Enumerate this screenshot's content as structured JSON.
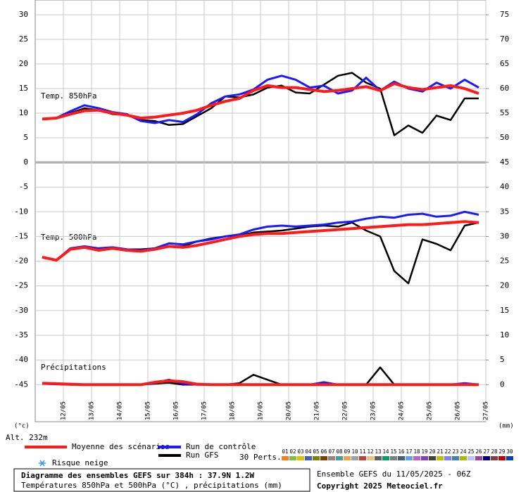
{
  "chart_data": [
    {
      "type": "line",
      "label": "Temp. 850hPa",
      "x": [
        0.25,
        0.75,
        1.25,
        1.75,
        2.25,
        2.75,
        3.25,
        3.75,
        4.25,
        4.75,
        5.25,
        5.75,
        6.25,
        6.75,
        7.25,
        7.75,
        8.25,
        8.75,
        9.25,
        9.75,
        10.25,
        10.75,
        11.25,
        11.75,
        12.25,
        12.75,
        13.25,
        13.75,
        14.25,
        14.75,
        15.25,
        15.75
      ],
      "xlim": [
        0,
        16
      ],
      "xticks": [
        1,
        2,
        3,
        4,
        5,
        6,
        7,
        8,
        9,
        10,
        11,
        12,
        13,
        14,
        15,
        16
      ],
      "ylim": [
        0,
        33
      ],
      "yticks": [
        0,
        5,
        10,
        15,
        20,
        25,
        30
      ],
      "y2lim": [
        45,
        78
      ],
      "y2ticks": [
        50,
        55,
        60,
        65,
        70,
        75
      ],
      "grid": true,
      "series": [
        {
          "name": "Moyenne des scénarios",
          "color": "#ff1a1a",
          "values": [
            8.8,
            9,
            9.8,
            10.5,
            10.6,
            10,
            9.6,
            9,
            9.2,
            9.6,
            10,
            10.6,
            11.6,
            12.4,
            13,
            14.6,
            15.6,
            15.2,
            15.2,
            14.8,
            14.4,
            14.6,
            15,
            15.4,
            14.6,
            16,
            15.2,
            14.8,
            15.2,
            15.6,
            15,
            14
          ]
        },
        {
          "name": "Run de contrôle",
          "color": "#1a1aff",
          "values": [
            8.8,
            9,
            10.4,
            11.6,
            11,
            10.2,
            9.8,
            8.4,
            8,
            8.6,
            8.2,
            9.8,
            12,
            13.4,
            13.8,
            14.8,
            16.8,
            17.6,
            16.8,
            15.2,
            15.6,
            14,
            14.6,
            17.2,
            14.6,
            16.4,
            15,
            14.4,
            16.2,
            15,
            16.8,
            15.2
          ]
        },
        {
          "name": "Run GFS",
          "color": "#000000",
          "values": [
            8.8,
            9,
            10,
            11,
            10.6,
            9.8,
            9.6,
            8.6,
            8.4,
            7.6,
            7.8,
            9.4,
            11,
            13.4,
            13.2,
            13.8,
            15.2,
            15.6,
            14.2,
            14,
            15.8,
            17.6,
            18.2,
            16.2,
            15,
            5.5,
            7.5,
            6,
            9.5,
            8.6,
            13,
            13
          ]
        }
      ]
    },
    {
      "type": "line",
      "label": "Temp. 500hPa",
      "precip_label": "Précipitations",
      "x": [
        0.25,
        0.75,
        1.25,
        1.75,
        2.25,
        2.75,
        3.25,
        3.75,
        4.25,
        4.75,
        5.25,
        5.75,
        6.25,
        6.75,
        7.25,
        7.75,
        8.25,
        8.75,
        9.25,
        9.75,
        10.25,
        10.75,
        11.25,
        11.75,
        12.25,
        12.75,
        13.25,
        13.75,
        14.25,
        14.75,
        15.25,
        15.75
      ],
      "xlim": [
        0,
        16
      ],
      "xticks": [
        {
          "value": 1,
          "label": "12/05"
        },
        {
          "value": 2,
          "label": "13/05"
        },
        {
          "value": 3,
          "label": "14/05"
        },
        {
          "value": 4,
          "label": "15/05"
        },
        {
          "value": 5,
          "label": "16/05"
        },
        {
          "value": 6,
          "label": "17/05"
        },
        {
          "value": 7,
          "label": "18/05"
        },
        {
          "value": 8,
          "label": "19/05"
        },
        {
          "value": 9,
          "label": "20/05"
        },
        {
          "value": 10,
          "label": "21/05"
        },
        {
          "value": 11,
          "label": "22/05"
        },
        {
          "value": 12,
          "label": "23/05"
        },
        {
          "value": 13,
          "label": "24/05"
        },
        {
          "value": 14,
          "label": "25/05"
        },
        {
          "value": 15,
          "label": "26/05"
        },
        {
          "value": 16,
          "label": "27/05"
        }
      ],
      "ylim": [
        -52.5,
        0
      ],
      "yticks": [
        -45,
        -40,
        -35,
        -30,
        -25,
        -20,
        -15,
        -10,
        -5
      ],
      "y2lim": [
        -7.5,
        45
      ],
      "y2ticks": [
        0,
        5,
        10,
        15,
        20,
        25,
        30,
        35,
        40,
        45
      ],
      "y_unit": "(°c)",
      "y2_unit": "(mm)",
      "grid": true,
      "series": [
        {
          "color": "#ff1a1a",
          "values": [
            -19.2,
            -19.8,
            -17.6,
            -17.2,
            -17.8,
            -17.4,
            -17.8,
            -18,
            -17.6,
            -17,
            -17.2,
            -16.8,
            -16.2,
            -15.6,
            -15,
            -14.6,
            -14.4,
            -14.4,
            -14.2,
            -14,
            -13.8,
            -13.6,
            -13.4,
            -13.2,
            -13,
            -12.8,
            -12.6,
            -12.6,
            -12.4,
            -12.2,
            -12,
            -12.2
          ]
        },
        {
          "color": "#1a1aff",
          "values": [
            -19.2,
            -19.8,
            -17.4,
            -17,
            -17.4,
            -17.2,
            -17.6,
            -17.8,
            -17.4,
            -16.4,
            -16.6,
            -16,
            -15.6,
            -15,
            -14.6,
            -13.6,
            -13,
            -12.8,
            -13,
            -12.8,
            -12.6,
            -12.2,
            -12,
            -11.4,
            -11,
            -11.2,
            -10.6,
            -10.4,
            -11,
            -10.8,
            -10,
            -10.6
          ]
        },
        {
          "color": "#000000",
          "values": [
            -19.2,
            -19.8,
            -17.4,
            -17,
            -17.6,
            -17.4,
            -17.6,
            -17.6,
            -17.4,
            -17,
            -17,
            -16,
            -15.4,
            -15,
            -14.8,
            -14.2,
            -14,
            -13.8,
            -13.4,
            -13,
            -12.8,
            -13,
            -12.2,
            -13.8,
            -15,
            -22,
            -24.5,
            -15.6,
            -16.5,
            -17.8,
            -12.8,
            -12.2
          ]
        },
        {
          "color": "#ff1a1a",
          "axis": "y2",
          "values": [
            0.3,
            0.2,
            0.1,
            0,
            0,
            0,
            0,
            0,
            0.5,
            0.8,
            0.6,
            0.1,
            0,
            0,
            0,
            0,
            0,
            0,
            0,
            0,
            0,
            0,
            0,
            0,
            0,
            0,
            0,
            0,
            0,
            0,
            0,
            0
          ]
        },
        {
          "color": "#1a1aff",
          "axis": "y2",
          "values": [
            0.2,
            0.1,
            0,
            0,
            0,
            0,
            0,
            0,
            0.3,
            1,
            0.2,
            0,
            0,
            0,
            0,
            0,
            0,
            0,
            0,
            0,
            0.5,
            0,
            0,
            0,
            0,
            0,
            0,
            0,
            0,
            0,
            0.3,
            0
          ]
        },
        {
          "color": "#000000",
          "axis": "y2",
          "values": [
            0.3,
            0.1,
            0,
            0,
            0,
            0,
            0,
            0,
            0.2,
            0.4,
            0,
            0,
            0,
            0,
            0.3,
            2,
            1,
            0,
            0,
            0,
            0,
            0,
            0,
            0,
            3.5,
            0,
            0,
            0,
            0,
            0,
            0,
            0
          ]
        }
      ]
    }
  ],
  "altitude": "Alt. 232m",
  "snow_label": "Risque neige",
  "perts_label": "30 Perts.",
  "perturbations": [
    {
      "name": "01",
      "color": "#f08020"
    },
    {
      "name": "02",
      "color": "#80c040"
    },
    {
      "name": "03",
      "color": "#e0c000"
    },
    {
      "name": "04",
      "color": "#4060c0"
    },
    {
      "name": "05",
      "color": "#808000"
    },
    {
      "name": "06",
      "color": "#804000"
    },
    {
      "name": "07",
      "color": "#a08080"
    },
    {
      "name": "08",
      "color": "#40a0a0"
    },
    {
      "name": "09",
      "color": "#f0a040"
    },
    {
      "name": "10",
      "color": "#a0a0a0"
    },
    {
      "name": "11",
      "color": "#c04040"
    },
    {
      "name": "12",
      "color": "#f0c080"
    },
    {
      "name": "13",
      "color": "#606060"
    },
    {
      "name": "14",
      "color": "#00a060"
    },
    {
      "name": "15",
      "color": "#808080"
    },
    {
      "name": "16",
      "color": "#406080"
    },
    {
      "name": "17",
      "color": "#60a0f0"
    },
    {
      "name": "18",
      "color": "#c060c0"
    },
    {
      "name": "19",
      "color": "#8040c0"
    },
    {
      "name": "20",
      "color": "#404040"
    },
    {
      "name": "21",
      "color": "#c0c000"
    },
    {
      "name": "22",
      "color": "#8080ff"
    },
    {
      "name": "23",
      "color": "#4080c0"
    },
    {
      "name": "24",
      "color": "#a0c000"
    },
    {
      "name": "25",
      "color": "#c0c0ff"
    },
    {
      "name": "26",
      "color": "#a040a0"
    },
    {
      "name": "27",
      "color": "#000080"
    },
    {
      "name": "28",
      "color": "#804040"
    },
    {
      "name": "29",
      "color": "#c00000"
    },
    {
      "name": "30",
      "color": "#0040c0"
    }
  ],
  "footer": {
    "title": "Diagramme des ensembles GEFS sur 384h : 37.9N 1.2W",
    "subtitle": "Températures 850hPa et 500hPa (°C) , précipitations (mm)",
    "run": "Ensemble GEFS du 11/05/2025 - 06Z",
    "copyright": "Copyright 2025 Meteociel.fr"
  }
}
